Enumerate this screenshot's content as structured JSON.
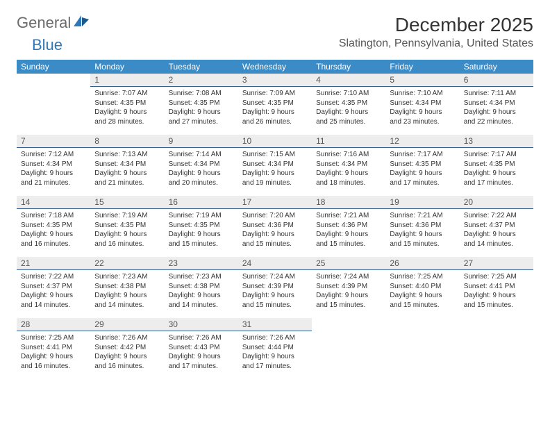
{
  "logo": {
    "part1": "General",
    "part2": "Blue"
  },
  "title": "December 2025",
  "subtitle": "Slatington, Pennsylvania, United States",
  "colors": {
    "header_bg": "#3b8bc7",
    "header_text": "#ffffff",
    "daynum_bg": "#ededed",
    "rule": "#2f5f8a",
    "logo_gray": "#6b6b6b",
    "logo_blue": "#2f78b7"
  },
  "weekdays": [
    "Sunday",
    "Monday",
    "Tuesday",
    "Wednesday",
    "Thursday",
    "Friday",
    "Saturday"
  ],
  "cells": [
    {
      "blank": true
    },
    {
      "day": "1",
      "sunrise": "Sunrise: 7:07 AM",
      "sunset": "Sunset: 4:35 PM",
      "dl1": "Daylight: 9 hours",
      "dl2": "and 28 minutes."
    },
    {
      "day": "2",
      "sunrise": "Sunrise: 7:08 AM",
      "sunset": "Sunset: 4:35 PM",
      "dl1": "Daylight: 9 hours",
      "dl2": "and 27 minutes."
    },
    {
      "day": "3",
      "sunrise": "Sunrise: 7:09 AM",
      "sunset": "Sunset: 4:35 PM",
      "dl1": "Daylight: 9 hours",
      "dl2": "and 26 minutes."
    },
    {
      "day": "4",
      "sunrise": "Sunrise: 7:10 AM",
      "sunset": "Sunset: 4:35 PM",
      "dl1": "Daylight: 9 hours",
      "dl2": "and 25 minutes."
    },
    {
      "day": "5",
      "sunrise": "Sunrise: 7:10 AM",
      "sunset": "Sunset: 4:34 PM",
      "dl1": "Daylight: 9 hours",
      "dl2": "and 23 minutes."
    },
    {
      "day": "6",
      "sunrise": "Sunrise: 7:11 AM",
      "sunset": "Sunset: 4:34 PM",
      "dl1": "Daylight: 9 hours",
      "dl2": "and 22 minutes."
    },
    {
      "day": "7",
      "sunrise": "Sunrise: 7:12 AM",
      "sunset": "Sunset: 4:34 PM",
      "dl1": "Daylight: 9 hours",
      "dl2": "and 21 minutes."
    },
    {
      "day": "8",
      "sunrise": "Sunrise: 7:13 AM",
      "sunset": "Sunset: 4:34 PM",
      "dl1": "Daylight: 9 hours",
      "dl2": "and 21 minutes."
    },
    {
      "day": "9",
      "sunrise": "Sunrise: 7:14 AM",
      "sunset": "Sunset: 4:34 PM",
      "dl1": "Daylight: 9 hours",
      "dl2": "and 20 minutes."
    },
    {
      "day": "10",
      "sunrise": "Sunrise: 7:15 AM",
      "sunset": "Sunset: 4:34 PM",
      "dl1": "Daylight: 9 hours",
      "dl2": "and 19 minutes."
    },
    {
      "day": "11",
      "sunrise": "Sunrise: 7:16 AM",
      "sunset": "Sunset: 4:34 PM",
      "dl1": "Daylight: 9 hours",
      "dl2": "and 18 minutes."
    },
    {
      "day": "12",
      "sunrise": "Sunrise: 7:17 AM",
      "sunset": "Sunset: 4:35 PM",
      "dl1": "Daylight: 9 hours",
      "dl2": "and 17 minutes."
    },
    {
      "day": "13",
      "sunrise": "Sunrise: 7:17 AM",
      "sunset": "Sunset: 4:35 PM",
      "dl1": "Daylight: 9 hours",
      "dl2": "and 17 minutes."
    },
    {
      "day": "14",
      "sunrise": "Sunrise: 7:18 AM",
      "sunset": "Sunset: 4:35 PM",
      "dl1": "Daylight: 9 hours",
      "dl2": "and 16 minutes."
    },
    {
      "day": "15",
      "sunrise": "Sunrise: 7:19 AM",
      "sunset": "Sunset: 4:35 PM",
      "dl1": "Daylight: 9 hours",
      "dl2": "and 16 minutes."
    },
    {
      "day": "16",
      "sunrise": "Sunrise: 7:19 AM",
      "sunset": "Sunset: 4:35 PM",
      "dl1": "Daylight: 9 hours",
      "dl2": "and 15 minutes."
    },
    {
      "day": "17",
      "sunrise": "Sunrise: 7:20 AM",
      "sunset": "Sunset: 4:36 PM",
      "dl1": "Daylight: 9 hours",
      "dl2": "and 15 minutes."
    },
    {
      "day": "18",
      "sunrise": "Sunrise: 7:21 AM",
      "sunset": "Sunset: 4:36 PM",
      "dl1": "Daylight: 9 hours",
      "dl2": "and 15 minutes."
    },
    {
      "day": "19",
      "sunrise": "Sunrise: 7:21 AM",
      "sunset": "Sunset: 4:36 PM",
      "dl1": "Daylight: 9 hours",
      "dl2": "and 15 minutes."
    },
    {
      "day": "20",
      "sunrise": "Sunrise: 7:22 AM",
      "sunset": "Sunset: 4:37 PM",
      "dl1": "Daylight: 9 hours",
      "dl2": "and 14 minutes."
    },
    {
      "day": "21",
      "sunrise": "Sunrise: 7:22 AM",
      "sunset": "Sunset: 4:37 PM",
      "dl1": "Daylight: 9 hours",
      "dl2": "and 14 minutes."
    },
    {
      "day": "22",
      "sunrise": "Sunrise: 7:23 AM",
      "sunset": "Sunset: 4:38 PM",
      "dl1": "Daylight: 9 hours",
      "dl2": "and 14 minutes."
    },
    {
      "day": "23",
      "sunrise": "Sunrise: 7:23 AM",
      "sunset": "Sunset: 4:38 PM",
      "dl1": "Daylight: 9 hours",
      "dl2": "and 14 minutes."
    },
    {
      "day": "24",
      "sunrise": "Sunrise: 7:24 AM",
      "sunset": "Sunset: 4:39 PM",
      "dl1": "Daylight: 9 hours",
      "dl2": "and 15 minutes."
    },
    {
      "day": "25",
      "sunrise": "Sunrise: 7:24 AM",
      "sunset": "Sunset: 4:39 PM",
      "dl1": "Daylight: 9 hours",
      "dl2": "and 15 minutes."
    },
    {
      "day": "26",
      "sunrise": "Sunrise: 7:25 AM",
      "sunset": "Sunset: 4:40 PM",
      "dl1": "Daylight: 9 hours",
      "dl2": "and 15 minutes."
    },
    {
      "day": "27",
      "sunrise": "Sunrise: 7:25 AM",
      "sunset": "Sunset: 4:41 PM",
      "dl1": "Daylight: 9 hours",
      "dl2": "and 15 minutes."
    },
    {
      "day": "28",
      "sunrise": "Sunrise: 7:25 AM",
      "sunset": "Sunset: 4:41 PM",
      "dl1": "Daylight: 9 hours",
      "dl2": "and 16 minutes."
    },
    {
      "day": "29",
      "sunrise": "Sunrise: 7:26 AM",
      "sunset": "Sunset: 4:42 PM",
      "dl1": "Daylight: 9 hours",
      "dl2": "and 16 minutes."
    },
    {
      "day": "30",
      "sunrise": "Sunrise: 7:26 AM",
      "sunset": "Sunset: 4:43 PM",
      "dl1": "Daylight: 9 hours",
      "dl2": "and 17 minutes."
    },
    {
      "day": "31",
      "sunrise": "Sunrise: 7:26 AM",
      "sunset": "Sunset: 4:44 PM",
      "dl1": "Daylight: 9 hours",
      "dl2": "and 17 minutes."
    },
    {
      "blank": true
    },
    {
      "blank": true
    },
    {
      "blank": true
    }
  ]
}
